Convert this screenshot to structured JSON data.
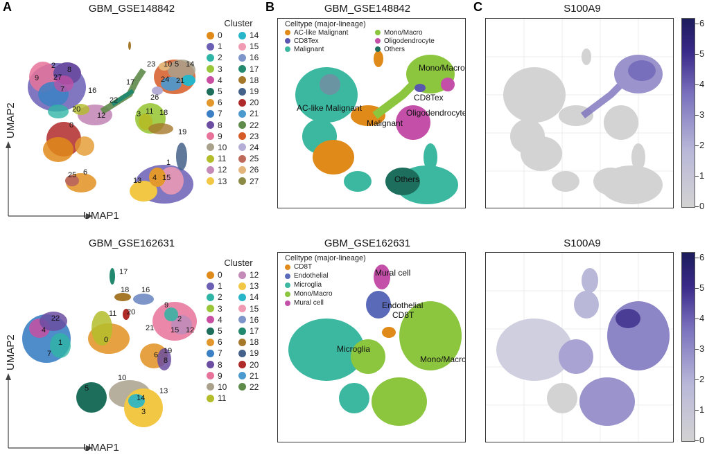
{
  "panel_letters": {
    "a": "A",
    "b": "B",
    "c": "C"
  },
  "row1": {
    "a_title": "GBM_GSE148842",
    "b_title": "GBM_GSE148842",
    "c_title": "S100A9",
    "a_axis_x": "UMAP1",
    "a_axis_y": "UMAP2",
    "cluster_legend_title": "Cluster",
    "clusters": [
      {
        "label": "0",
        "color": "#e08a1a"
      },
      {
        "label": "1",
        "color": "#6a5fb5"
      },
      {
        "label": "2",
        "color": "#2fb5a5"
      },
      {
        "label": "3",
        "color": "#9ac63a"
      },
      {
        "label": "4",
        "color": "#c84fa2"
      },
      {
        "label": "5",
        "color": "#1e6e5c"
      },
      {
        "label": "6",
        "color": "#e3982e"
      },
      {
        "label": "7",
        "color": "#3b80c4"
      },
      {
        "label": "8",
        "color": "#6b4ea1"
      },
      {
        "label": "9",
        "color": "#e8739a"
      },
      {
        "label": "10",
        "color": "#a9a18c"
      },
      {
        "label": "11",
        "color": "#b3bd2a"
      },
      {
        "label": "12",
        "color": "#c48ab8"
      },
      {
        "label": "13",
        "color": "#f2c744"
      },
      {
        "label": "14",
        "color": "#27b5c9"
      },
      {
        "label": "15",
        "color": "#f09ab3"
      },
      {
        "label": "16",
        "color": "#7d95c9"
      },
      {
        "label": "17",
        "color": "#22886e"
      },
      {
        "label": "18",
        "color": "#a5782a"
      },
      {
        "label": "19",
        "color": "#44618a"
      },
      {
        "label": "20",
        "color": "#b02a2a"
      },
      {
        "label": "21",
        "color": "#4a99cf"
      },
      {
        "label": "22",
        "color": "#5e8a4a"
      },
      {
        "label": "23",
        "color": "#d65a26"
      },
      {
        "label": "24",
        "color": "#b4aed6"
      },
      {
        "label": "25",
        "color": "#bd6a5a"
      },
      {
        "label": "26",
        "color": "#e3b57a"
      },
      {
        "label": "27",
        "color": "#8a8a45"
      }
    ],
    "map_labels": [
      "2",
      "8",
      "9",
      "27",
      "7",
      "16",
      "20",
      "0",
      "12",
      "22",
      "17",
      "23",
      "10",
      "5",
      "14",
      "24",
      "21",
      "26",
      "3",
      "11",
      "18",
      "19",
      "1",
      "4",
      "15",
      "13",
      "25",
      "6"
    ],
    "celltype_legend_title": "Celltype (major-lineage)",
    "celltypes": [
      {
        "label": "AC-like Malignant",
        "color": "#e08a1a"
      },
      {
        "label": "CD8Tex",
        "color": "#5a57b0"
      },
      {
        "label": "Malignant",
        "color": "#3cb8a0"
      },
      {
        "label": "Mono/Macro",
        "color": "#8cc63e"
      },
      {
        "label": "Oligodendrocyte",
        "color": "#c44fa8"
      },
      {
        "label": "Others",
        "color": "#1d6e5c"
      }
    ],
    "b_map_labels": [
      "Mono/Macro",
      "CD8Tex",
      "AC-like Malignant",
      "Oligodendrocyte",
      "Malignant",
      "Others"
    ],
    "colorbar_ticks": [
      "0",
      "1",
      "2",
      "3",
      "4",
      "5",
      "6"
    ]
  },
  "row2": {
    "a_title": "GBM_GSE162631",
    "b_title": "GBM_GSE162631",
    "c_title": "S100A9",
    "a_axis_x": "UMAP1",
    "a_axis_y": "UMAP2",
    "cluster_legend_title": "Cluster",
    "clusters": [
      {
        "label": "0",
        "color": "#e08a1a"
      },
      {
        "label": "1",
        "color": "#6a5fb5"
      },
      {
        "label": "2",
        "color": "#2fb5a5"
      },
      {
        "label": "3",
        "color": "#9ac63a"
      },
      {
        "label": "4",
        "color": "#c84fa2"
      },
      {
        "label": "5",
        "color": "#1e6e5c"
      },
      {
        "label": "6",
        "color": "#e3982e"
      },
      {
        "label": "7",
        "color": "#3b80c4"
      },
      {
        "label": "8",
        "color": "#6b4ea1"
      },
      {
        "label": "9",
        "color": "#e8739a"
      },
      {
        "label": "10",
        "color": "#a9a18c"
      },
      {
        "label": "11",
        "color": "#b3bd2a"
      },
      {
        "label": "12",
        "color": "#c48ab8"
      },
      {
        "label": "13",
        "color": "#f2c744"
      },
      {
        "label": "14",
        "color": "#27b5c9"
      },
      {
        "label": "15",
        "color": "#f09ab3"
      },
      {
        "label": "16",
        "color": "#7d95c9"
      },
      {
        "label": "17",
        "color": "#22886e"
      },
      {
        "label": "18",
        "color": "#a5782a"
      },
      {
        "label": "19",
        "color": "#44618a"
      },
      {
        "label": "20",
        "color": "#b02a2a"
      },
      {
        "label": "21",
        "color": "#4a99cf"
      },
      {
        "label": "22",
        "color": "#5e8a4a"
      }
    ],
    "map_labels": [
      "17",
      "18",
      "16",
      "11",
      "20",
      "9",
      "22",
      "4",
      "1",
      "7",
      "0",
      "21",
      "2",
      "15",
      "12",
      "6",
      "19",
      "8",
      "10",
      "5",
      "14",
      "13",
      "3"
    ],
    "celltype_legend_title": "Celltype (major-lineage)",
    "celltypes": [
      {
        "label": "CD8T",
        "color": "#e08a1a"
      },
      {
        "label": "Endothelial",
        "color": "#5a6ab8"
      },
      {
        "label": "Microglia",
        "color": "#3cb8a0"
      },
      {
        "label": "Mono/Macro",
        "color": "#8cc63e"
      },
      {
        "label": "Mural cell",
        "color": "#c44fa8"
      }
    ],
    "b_map_labels": [
      "Mural cell",
      "Endothelial",
      "CD8T",
      "Microglia",
      "Mono/Macro"
    ],
    "colorbar_ticks": [
      "0",
      "1",
      "2",
      "3",
      "4",
      "5",
      "6"
    ]
  }
}
